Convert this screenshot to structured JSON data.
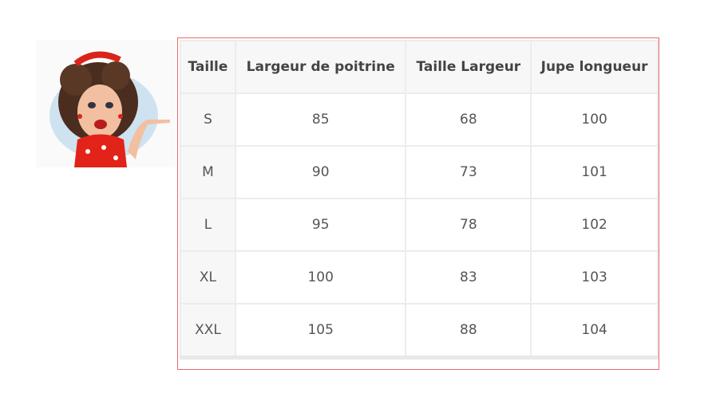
{
  "table": {
    "headers": [
      "Taille",
      "Largeur de poitrine",
      "Taille Largeur",
      "Jupe longueur"
    ],
    "rows": [
      [
        "S",
        "85",
        "68",
        "100"
      ],
      [
        "M",
        "90",
        "73",
        "101"
      ],
      [
        "L",
        "95",
        "78",
        "102"
      ],
      [
        "XL",
        "100",
        "83",
        "103"
      ],
      [
        "XXL",
        "105",
        "88",
        "104"
      ]
    ]
  },
  "colors": {
    "frame_border": "#e86a6a",
    "header_bg": "#f7f7f7",
    "grid": "#ececec"
  }
}
